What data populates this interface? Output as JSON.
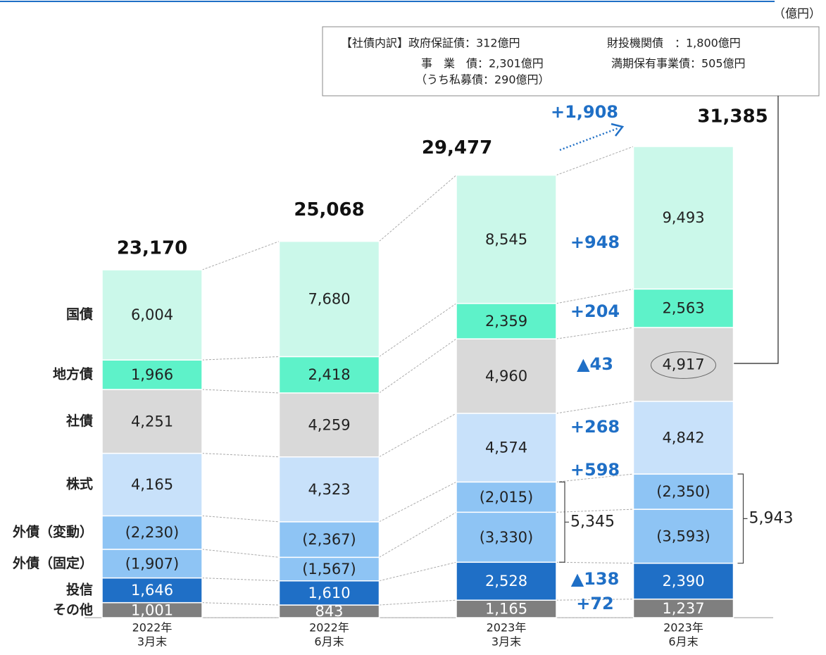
{
  "chart_data": {
    "type": "stacked_bar",
    "unit": "（億円）",
    "categories": [
      [
        "2022年",
        "3月末"
      ],
      [
        "2022年",
        "6月末"
      ],
      [
        "2023年",
        "3月末"
      ],
      [
        "2023年",
        "6月末"
      ]
    ],
    "series": [
      {
        "name": "その他",
        "color": "#7f7f7f",
        "label_color": "#ffffff",
        "values": [
          1001,
          843,
          1165,
          1237
        ],
        "value_labels": [
          "1,001",
          "843",
          "1,165",
          "1,237"
        ]
      },
      {
        "name": "投信",
        "color": "#1f6fc6",
        "label_color": "#ffffff",
        "values": [
          1646,
          1610,
          2528,
          2390
        ],
        "value_labels": [
          "1,646",
          "1,610",
          "2,528",
          "2,390"
        ]
      },
      {
        "name": "外債（固定）",
        "color": "#8ec4f4",
        "label_color": "#222222",
        "values": [
          1907,
          1567,
          3330,
          3593
        ],
        "value_labels": [
          "(1,907)",
          "(1,567)",
          "(3,330)",
          "(3,593)"
        ]
      },
      {
        "name": "外債（変動）",
        "color": "#8ec4f4",
        "label_color": "#222222",
        "values": [
          2230,
          2367,
          2015,
          2350
        ],
        "value_labels": [
          "(2,230)",
          "(2,367)",
          "(2,015)",
          "(2,350)"
        ]
      },
      {
        "name": "株式",
        "color": "#c8e1fa",
        "label_color": "#222222",
        "values": [
          4165,
          4323,
          4574,
          4842
        ],
        "value_labels": [
          "4,165",
          "4,323",
          "4,574",
          "4,842"
        ]
      },
      {
        "name": "社債",
        "color": "#d9d9d9",
        "label_color": "#222222",
        "values": [
          4251,
          4259,
          4960,
          4917
        ],
        "value_labels": [
          "4,251",
          "4,259",
          "4,960",
          "4,917"
        ]
      },
      {
        "name": "地方債",
        "color": "#5ef2c9",
        "label_color": "#222222",
        "values": [
          1966,
          2418,
          2359,
          2563
        ],
        "value_labels": [
          "1,966",
          "2,418",
          "2,359",
          "2,563"
        ]
      },
      {
        "name": "国債",
        "color": "#cbf8ea",
        "label_color": "#222222",
        "values": [
          6004,
          7680,
          8545,
          9493
        ],
        "value_labels": [
          "6,004",
          "7,680",
          "8,545",
          "9,493"
        ]
      }
    ],
    "totals": {
      "values": [
        23170,
        25068,
        29477,
        31385
      ],
      "value_labels": [
        "23,170",
        "25,068",
        "29,477",
        "31,385"
      ]
    },
    "total_change": "+1,908",
    "changes": [
      "+948",
      "+204",
      "▲43",
      "+268",
      "+598",
      "▲138",
      "+72"
    ],
    "group_totals": {
      "values": [
        5345,
        5943
      ],
      "value_labels": [
        "5,345",
        "5,943"
      ]
    },
    "note": {
      "lines": [
        "【社債内訳】政府保証債：312億円",
        "財投機関債　：1,800億円",
        "事　業　債：2,301億円",
        "満期保有事業債：505億円",
        "（うち私募債：290億円）"
      ]
    }
  }
}
